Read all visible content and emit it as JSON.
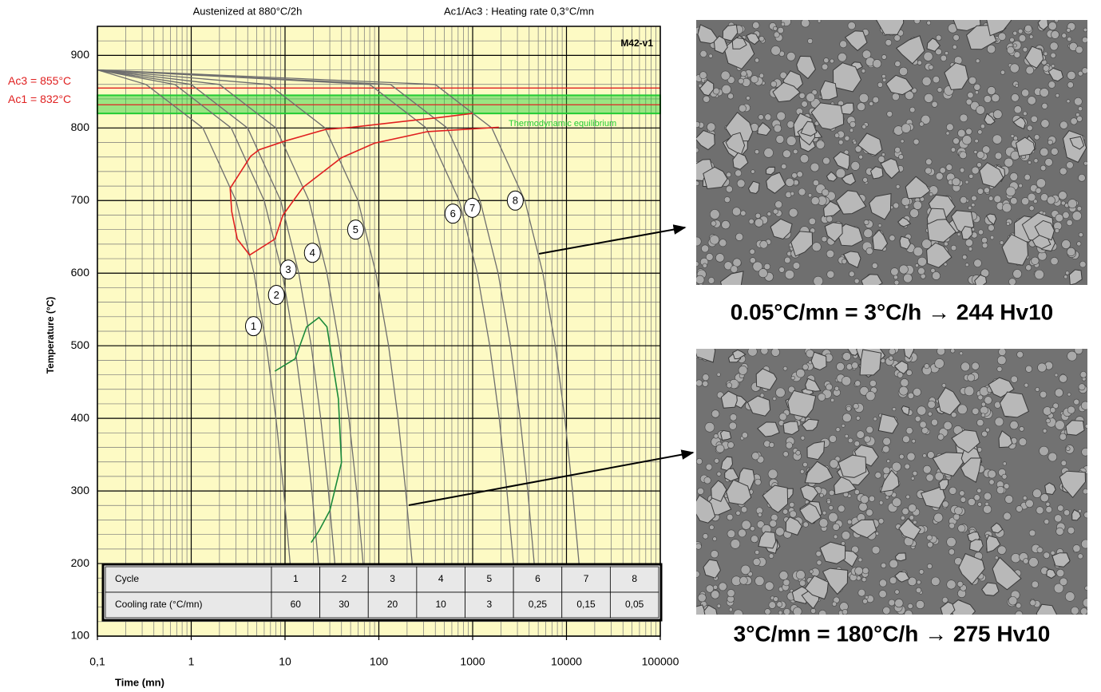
{
  "chart_data": {
    "type": "line",
    "title": "Austenized at 880°C/2h",
    "subtitle": "Ac1/Ac3 : Heating rate 0,3°C/mn",
    "annotation": "M42-v1",
    "xlabel": "Time (mn)",
    "ylabel": "Temperature (°C)",
    "xscale": "log",
    "xlim": [
      0.1,
      100000
    ],
    "ylim": [
      100,
      940
    ],
    "xticks": [
      {
        "value": 0.1,
        "label": "0,1"
      },
      1,
      10,
      100,
      1000,
      10000,
      100000
    ],
    "yticks": [
      100,
      200,
      300,
      400,
      500,
      600,
      700,
      800,
      900
    ],
    "grid": true,
    "series": [
      {
        "name": "1",
        "color": "#6e6e6e",
        "x": [
          0.1,
          0.33,
          1.33,
          3,
          4.67,
          6.33,
          8,
          9.67,
          11.33
        ],
        "values": [
          880,
          860,
          800,
          700,
          600,
          500,
          400,
          300,
          200
        ]
      },
      {
        "name": "2",
        "color": "#6e6e6e",
        "x": [
          0.1,
          0.67,
          2.67,
          6,
          9.33,
          12.7,
          16,
          19.3,
          22.7
        ],
        "values": [
          880,
          860,
          800,
          700,
          600,
          500,
          400,
          300,
          200
        ]
      },
      {
        "name": "3",
        "color": "#6e6e6e",
        "x": [
          0.1,
          1,
          4,
          9,
          14,
          19,
          24,
          29,
          34
        ],
        "values": [
          880,
          860,
          800,
          700,
          600,
          500,
          400,
          300,
          200
        ]
      },
      {
        "name": "4",
        "color": "#6e6e6e",
        "x": [
          0.1,
          2,
          8,
          18,
          28,
          38,
          48,
          58,
          68
        ],
        "values": [
          880,
          860,
          800,
          700,
          600,
          500,
          400,
          300,
          200
        ]
      },
      {
        "name": "5",
        "color": "#6e6e6e",
        "x": [
          0.1,
          6.7,
          26.7,
          60,
          93,
          127,
          160,
          193,
          227
        ],
        "values": [
          880,
          860,
          800,
          700,
          600,
          500,
          400,
          300,
          200
        ]
      },
      {
        "name": "6",
        "color": "#6e6e6e",
        "x": [
          0.1,
          80,
          320,
          720,
          1120,
          1520,
          1920,
          2320,
          2720
        ],
        "values": [
          880,
          860,
          800,
          700,
          600,
          500,
          400,
          300,
          200
        ]
      },
      {
        "name": "7",
        "color": "#6e6e6e",
        "x": [
          0.1,
          133,
          533,
          1200,
          1867,
          2533,
          3200,
          3867,
          4533
        ],
        "values": [
          880,
          860,
          800,
          700,
          600,
          500,
          400,
          300,
          200
        ]
      },
      {
        "name": "8",
        "color": "#6e6e6e",
        "x": [
          0.1,
          400,
          1600,
          3600,
          5600,
          7600,
          9600,
          11600,
          13600
        ],
        "values": [
          880,
          860,
          800,
          700,
          600,
          500,
          400,
          300,
          200
        ]
      },
      {
        "color": "#e02020",
        "x": [
          1000,
          420,
          250,
          52,
          27,
          10,
          5.3,
          4.3,
          2.6,
          2.7,
          3.1,
          4.2,
          7.8,
          9.5,
          15.5,
          40,
          90,
          330,
          1900
        ],
        "values": [
          820,
          814,
          811,
          801,
          798,
          782,
          770,
          761,
          717,
          685,
          647,
          625,
          647,
          680,
          718,
          759,
          779,
          795,
          801
        ]
      },
      {
        "color": "#1a8a3a",
        "x": [
          7.8,
          12.8,
          17,
          23,
          28,
          37,
          40,
          30,
          23,
          19
        ],
        "values": [
          465,
          482,
          526,
          539,
          526,
          427,
          339,
          273,
          245,
          229
        ]
      }
    ],
    "reference_lines": [
      {
        "label": "Ac3 = 855°C",
        "value": 855,
        "color": "#e02020"
      },
      {
        "label": "Ac1 = 832°C",
        "value": 832,
        "color": "#e02020"
      }
    ],
    "band": {
      "label": "Thermodynamic equilibrium",
      "range": [
        820,
        845
      ],
      "color": "#22cc33"
    },
    "table": {
      "rows": [
        [
          "Cycle",
          "1",
          "2",
          "3",
          "4",
          "5",
          "6",
          "7",
          "8"
        ],
        [
          "Cooling rate (°C/mn)",
          "60",
          "30",
          "20",
          "10",
          "3",
          "0,25",
          "0,15",
          "0,05"
        ]
      ]
    }
  },
  "micrographs": [
    {
      "caption": "0.05°C/mn = 3°C/h  → 244 Hv10"
    },
    {
      "caption": "3°C/mn = 180°C/h → 275 Hv10"
    }
  ]
}
